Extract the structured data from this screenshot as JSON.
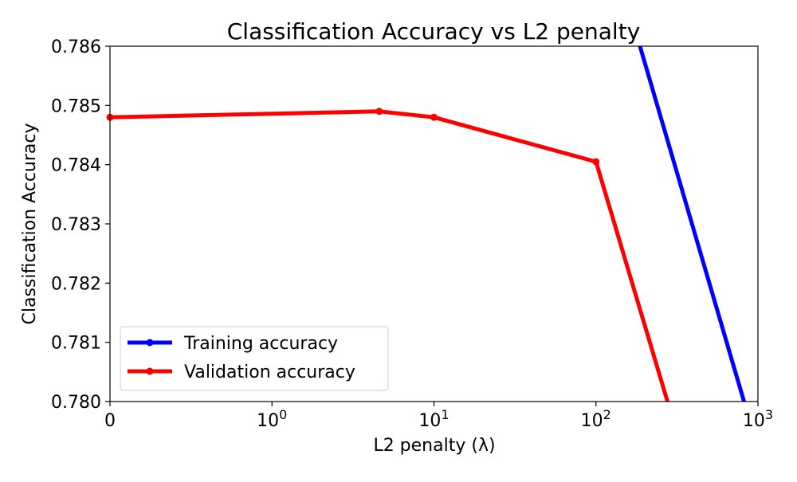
{
  "chart_data": {
    "type": "line",
    "title": "Classification Accuracy vs L2 penalty",
    "xlabel": "L2 penalty (λ)",
    "ylabel": "Classification Accuracy",
    "xscale": "symlog",
    "xlim": [
      0,
      1000
    ],
    "ylim": [
      0.78,
      0.786
    ],
    "x_tick_labels": [
      {
        "value": 0,
        "base": "0",
        "exp": ""
      },
      {
        "value": 1,
        "base": "10",
        "exp": "0"
      },
      {
        "value": 10,
        "base": "10",
        "exp": "1"
      },
      {
        "value": 100,
        "base": "10",
        "exp": "2"
      },
      {
        "value": 1000,
        "base": "10",
        "exp": "3"
      }
    ],
    "y_ticks": [
      0.78,
      0.781,
      0.782,
      0.783,
      0.784,
      0.785,
      0.786
    ],
    "y_tick_labels": [
      "0.780",
      "0.781",
      "0.782",
      "0.783",
      "0.784",
      "0.785",
      "0.786"
    ],
    "grid": false,
    "legend_position": "lower-left",
    "series": [
      {
        "name": "Training accuracy",
        "color": "#0000ff",
        "x": [
          178,
          830
        ],
        "y": [
          0.7862,
          0.77995
        ]
      },
      {
        "name": "Validation accuracy",
        "color": "#ff0000",
        "x": [
          0,
          4.6,
          10,
          100,
          280
        ],
        "y": [
          0.7848,
          0.7849,
          0.7848,
          0.78405,
          0.77995
        ]
      }
    ]
  }
}
